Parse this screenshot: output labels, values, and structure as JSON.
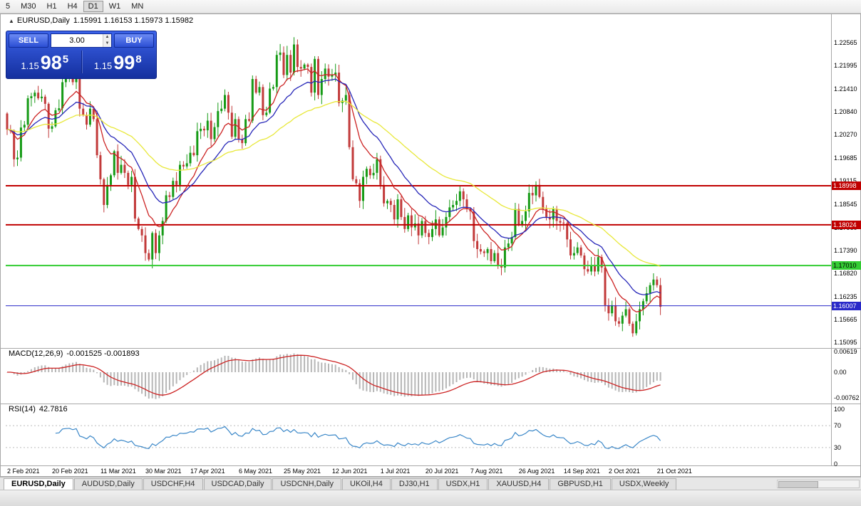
{
  "toolbar": {
    "timeframes": [
      "5",
      "M30",
      "H1",
      "H4",
      "D1",
      "W1",
      "MN"
    ],
    "active_timeframe": "D1"
  },
  "one_click": {
    "sell_label": "SELL",
    "buy_label": "BUY",
    "lot": "3.00",
    "sell_price": {
      "prefix": "1.15",
      "big": "98",
      "sup": "5"
    },
    "buy_price": {
      "prefix": "1.15",
      "big": "99",
      "sup": "8"
    }
  },
  "tabs": {
    "items": [
      "EURUSD,Daily",
      "AUDUSD,Daily",
      "USDCHF,H4",
      "USDCAD,Daily",
      "USDCNH,Daily",
      "UKOil,H4",
      "DJ30,H1",
      "USDX,H1",
      "XAUUSD,H4",
      "GBPUSD,H1",
      "USDX,Weekly"
    ],
    "active": "EURUSD,Daily"
  },
  "chart_data": {
    "type": "candlestick",
    "symbol": "EURUSD",
    "period": "Daily",
    "title": "EURUSD,Daily",
    "ohlc_text": "1.15991 1.16153 1.15973 1.15982",
    "price_range": [
      1.15,
      1.231
    ],
    "up_color": "#169b16",
    "down_color": "#c23a3a",
    "y_axis_labels": [
      "1.22565",
      "1.21995",
      "1.21410",
      "1.20840",
      "1.20270",
      "1.19685",
      "1.19115",
      "1.18545",
      "1.17960",
      "1.17390",
      "1.16820",
      "1.16235",
      "1.15665",
      "1.15095"
    ],
    "x_axis": {
      "labels": [
        "2 Feb 2021",
        "20 Feb 2021",
        "11 Mar 2021",
        "30 Mar 2021",
        "17 Apr 2021",
        "6 May 2021",
        "25 May 2021",
        "12 Jun 2021",
        "1 Jul 2021",
        "20 Jul 2021",
        "7 Aug 2021",
        "26 Aug 2021",
        "14 Sep 2021",
        "2 Oct 2021",
        "21 Oct 2021"
      ],
      "indices": [
        0,
        13,
        27,
        40,
        53,
        67,
        80,
        94,
        108,
        121,
        134,
        148,
        161,
        174,
        188
      ]
    },
    "closes": [
      1.204,
      1.2036,
      1.1966,
      1.197,
      1.2045,
      1.2052,
      1.2118,
      1.2123,
      1.2132,
      1.2118,
      1.2122,
      1.2104,
      1.2042,
      1.2048,
      1.2088,
      1.2093,
      1.2158,
      1.2166,
      1.2172,
      1.2158,
      1.2176,
      1.2092,
      1.2076,
      1.2052,
      1.2092,
      1.2066,
      1.1976,
      1.1916,
      1.1852,
      1.1902,
      1.1926,
      1.1986,
      1.1932,
      1.1952,
      1.1932,
      1.1902,
      1.1922,
      1.1818,
      1.1792,
      1.1776,
      1.1732,
      1.1716,
      1.1782,
      1.1732,
      1.1776,
      1.1812,
      1.1876,
      1.1872,
      1.1912,
      1.1902,
      1.1952,
      1.1948,
      1.1956,
      1.1982,
      1.1976,
      1.2036,
      1.2042,
      1.2038,
      1.2062,
      1.2016,
      1.2046,
      1.2086,
      1.2092,
      1.2126,
      1.2082,
      1.2022,
      1.2066,
      1.2016,
      1.2006,
      1.2066,
      1.2062,
      1.2166,
      1.2132,
      1.2146,
      1.2076,
      1.2082,
      1.2142,
      1.2146,
      1.2226,
      1.2232,
      1.2176,
      1.2226,
      1.2182,
      1.2252,
      1.2196,
      1.2192,
      1.2202,
      1.2196,
      1.2132,
      1.2216,
      1.2126,
      1.2166,
      1.2192,
      1.2172,
      1.2176,
      1.2182,
      1.2106,
      1.2112,
      1.2126,
      1.1996,
      1.1916,
      1.1906,
      1.1862,
      1.1922,
      1.1942,
      1.1926,
      1.1932,
      1.1966,
      1.1902,
      1.1856,
      1.1862,
      1.1852,
      1.1816,
      1.1866,
      1.1822,
      1.1792,
      1.1826,
      1.1796,
      1.1806,
      1.1776,
      1.1812,
      1.1782,
      1.1772,
      1.1792,
      1.1816,
      1.1776,
      1.1796,
      1.1822,
      1.1846,
      1.1852,
      1.1862,
      1.1886,
      1.1866,
      1.1842,
      1.1836,
      1.1762,
      1.1742,
      1.1736,
      1.1732,
      1.1742,
      1.1712,
      1.1732,
      1.1702,
      1.1696,
      1.1746,
      1.1756,
      1.1772,
      1.1842,
      1.1802,
      1.1812,
      1.1836,
      1.1882,
      1.1876,
      1.1902,
      1.1872,
      1.1842,
      1.1822,
      1.1816,
      1.1842,
      1.1812,
      1.1808,
      1.1806,
      1.1766,
      1.1726,
      1.1732,
      1.1746,
      1.1726,
      1.1692,
      1.1686,
      1.1702,
      1.1686,
      1.1722,
      1.1696,
      1.1602,
      1.1582,
      1.1602,
      1.1562,
      1.1556,
      1.1576,
      1.1592,
      1.1556,
      1.1532,
      1.1562,
      1.1592,
      1.1612,
      1.1632,
      1.1652,
      1.1666,
      1.1652,
      1.1598
    ],
    "moving_averages": [
      {
        "period": 10,
        "color": "#cc2222"
      },
      {
        "period": 20,
        "color": "#2626b8"
      },
      {
        "period": 50,
        "color": "#e8e83a"
      }
    ],
    "hlines": [
      {
        "price": 1.18998,
        "label": "1.18998",
        "color": "#c00000",
        "label_text": "#ffffff",
        "stroke_width": 2
      },
      {
        "price": 1.18024,
        "label": "1.18024",
        "color": "#c00000",
        "label_text": "#ffffff",
        "stroke_width": 2
      },
      {
        "price": 1.1701,
        "label": "1.17010",
        "color": "#33cc33",
        "label_text": "#000000",
        "stroke_width": 2
      },
      {
        "price": 1.16007,
        "label": "1.16007",
        "color": "#2929c8",
        "label_text": "#ffffff",
        "stroke_width": 1
      }
    ],
    "macd": {
      "label": "MACD(12,26,9)",
      "values_text": "-0.001525 -0.001893",
      "fast": 12,
      "slow": 26,
      "signal": 9,
      "axis_labels": [
        "0.00619",
        "0.00",
        "-0.00762"
      ],
      "axis_values": [
        0.00619,
        0,
        -0.00762
      ],
      "histogram_color": "#b6b6b6",
      "signal_color": "#cc2222"
    },
    "rsi": {
      "label": "RSI(14)",
      "value_text": "42.7816",
      "period": 14,
      "axis_labels": [
        "100",
        "70",
        "30",
        "0"
      ],
      "axis_values": [
        100,
        70,
        30,
        0
      ],
      "levels": [
        70,
        30
      ],
      "color": "#3a87c8"
    }
  }
}
